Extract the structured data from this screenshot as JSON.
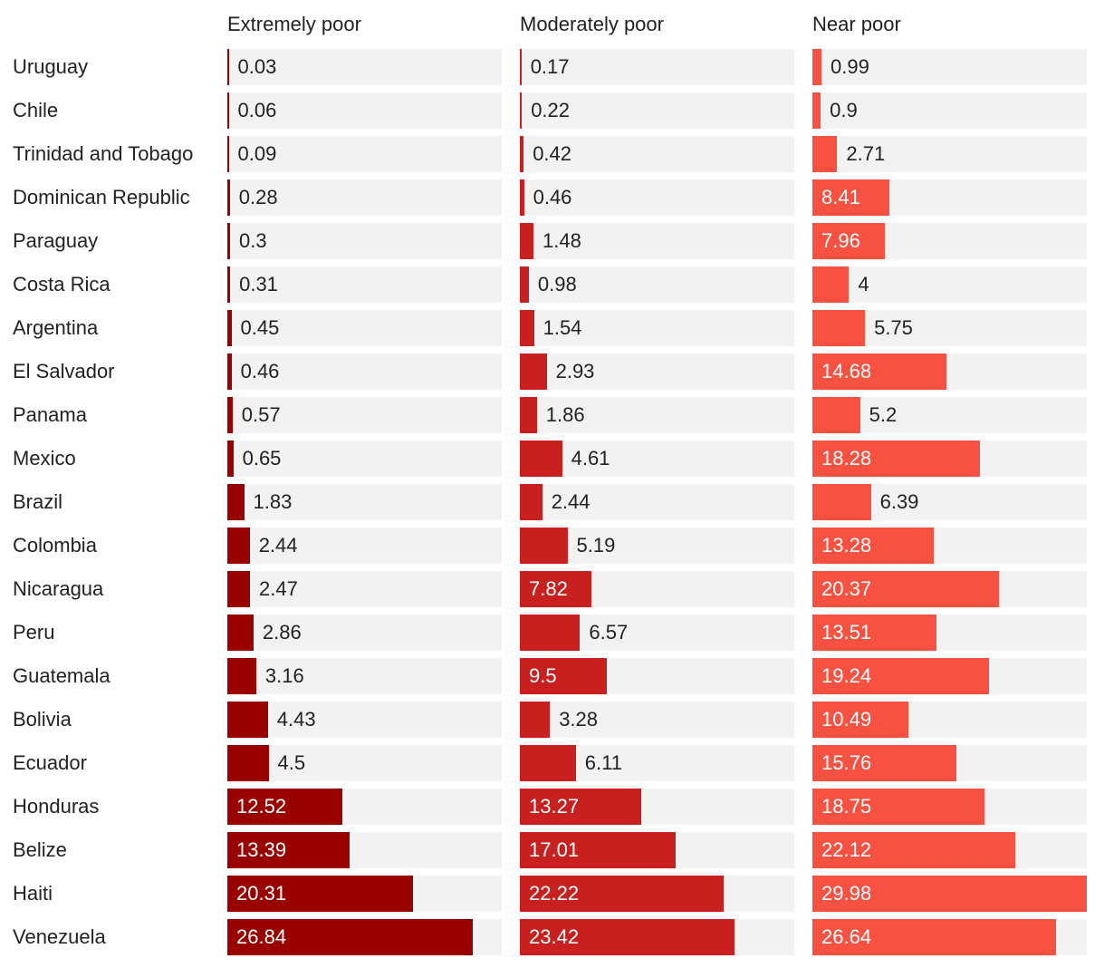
{
  "chart_data": {
    "type": "bar",
    "orientation": "horizontal",
    "title": "",
    "xlabel": "",
    "ylabel": "",
    "xlim": [
      0,
      29.98
    ],
    "grid": false,
    "legend": "none",
    "categories": [
      "Uruguay",
      "Chile",
      "Trinidad and Tobago",
      "Dominican Republic",
      "Paraguay",
      "Costa Rica",
      "Argentina",
      "El Salvador",
      "Panama",
      "Mexico",
      "Brazil",
      "Colombia",
      "Nicaragua",
      "Peru",
      "Guatemala",
      "Bolivia",
      "Ecuador",
      "Honduras",
      "Belize",
      "Haiti",
      "Venezuela"
    ],
    "series": [
      {
        "name": "Extremely poor",
        "color": "#990000",
        "values": [
          0.03,
          0.06,
          0.09,
          0.28,
          0.3,
          0.31,
          0.45,
          0.46,
          0.57,
          0.65,
          1.83,
          2.44,
          2.47,
          2.86,
          3.16,
          4.43,
          4.5,
          12.52,
          13.39,
          20.31,
          26.84
        ],
        "labels": [
          "0.03",
          "0.06",
          "0.09",
          "0.28",
          "0.3",
          "0.31",
          "0.45",
          "0.46",
          "0.57",
          "0.65",
          "1.83",
          "2.44",
          "2.47",
          "2.86",
          "3.16",
          "4.43",
          "4.5",
          "12.52",
          "13.39",
          "20.31",
          "26.84"
        ]
      },
      {
        "name": "Moderately poor",
        "color": "#c8201f",
        "values": [
          0.17,
          0.22,
          0.42,
          0.46,
          1.48,
          0.98,
          1.54,
          2.93,
          1.86,
          4.61,
          2.44,
          5.19,
          7.82,
          6.57,
          9.5,
          3.28,
          6.11,
          13.27,
          17.01,
          22.22,
          23.42
        ],
        "labels": [
          "0.17",
          "0.22",
          "0.42",
          "0.46",
          "1.48",
          "0.98",
          "1.54",
          "2.93",
          "1.86",
          "4.61",
          "2.44",
          "5.19",
          "7.82",
          "6.57",
          "9.5",
          "3.28",
          "6.11",
          "13.27",
          "17.01",
          "22.22",
          "23.42"
        ]
      },
      {
        "name": "Near poor",
        "color": "#f75142",
        "values": [
          0.99,
          0.9,
          2.71,
          8.41,
          7.96,
          4,
          5.75,
          14.68,
          5.2,
          18.28,
          6.39,
          13.28,
          20.37,
          13.51,
          19.24,
          10.49,
          15.76,
          18.75,
          22.12,
          29.98,
          26.64
        ],
        "labels": [
          "0.99",
          "0.9",
          "2.71",
          "8.41",
          "7.96",
          "4",
          "5.75",
          "14.68",
          "5.2",
          "18.28",
          "6.39",
          "13.28",
          "20.37",
          "13.51",
          "19.24",
          "10.49",
          "15.76",
          "18.75",
          "22.12",
          "29.98",
          "26.64"
        ]
      }
    ]
  },
  "colors": {
    "track": "#f2f2f2",
    "label_dark": "#222222",
    "label_inside": "#ffffff"
  }
}
